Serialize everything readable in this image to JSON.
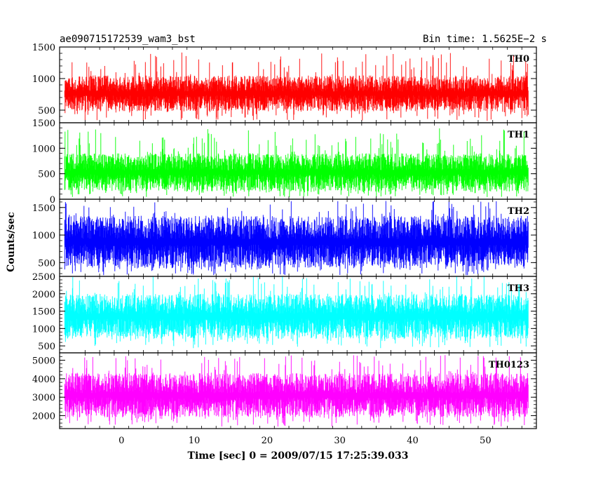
{
  "header": {
    "title": "ae090715172539_wam3_bst",
    "bin_time": "Bin time: 1.5625E−2 s"
  },
  "chart_data": {
    "type": "line",
    "xlabel": "Time [sec] 0 = 2009/07/15 17:25:39.033",
    "ylabel": "Counts/sec",
    "xlim": [
      -8.5,
      57
    ],
    "xticks": [
      0,
      10,
      20,
      30,
      40,
      50
    ],
    "x_range_data": [
      -7.8,
      55.9
    ],
    "grid": false,
    "panels": [
      {
        "name": "TH0",
        "color": "#ff0000",
        "ylim": [
          300,
          1500
        ],
        "yticks": [
          500,
          1000,
          1500
        ],
        "typical_range": [
          480,
          1050
        ],
        "min": 330,
        "max": 1420
      },
      {
        "name": "TH1",
        "color": "#00ff00",
        "ylim": [
          0,
          1500
        ],
        "yticks": [
          0,
          500,
          1000,
          1500
        ],
        "typical_range": [
          150,
          900
        ],
        "min": 40,
        "max": 1390
      },
      {
        "name": "TH2",
        "color": "#0000ff",
        "ylim": [
          250,
          1650
        ],
        "yticks": [
          500,
          1000,
          1500
        ],
        "typical_range": [
          400,
          1350
        ],
        "min": 270,
        "max": 1620
      },
      {
        "name": "TH3",
        "color": "#00ffff",
        "ylim": [
          300,
          2500
        ],
        "yticks": [
          500,
          1000,
          1500,
          2000,
          2500
        ],
        "typical_range": [
          700,
          2000
        ],
        "min": 430,
        "max": 2500
      },
      {
        "name": "TH0123",
        "color": "#ff00ff",
        "ylim": [
          1300,
          5400
        ],
        "yticks": [
          2000,
          3000,
          4000,
          5000
        ],
        "typical_range": [
          1900,
          4300
        ],
        "min": 1400,
        "max": 5300
      }
    ]
  }
}
